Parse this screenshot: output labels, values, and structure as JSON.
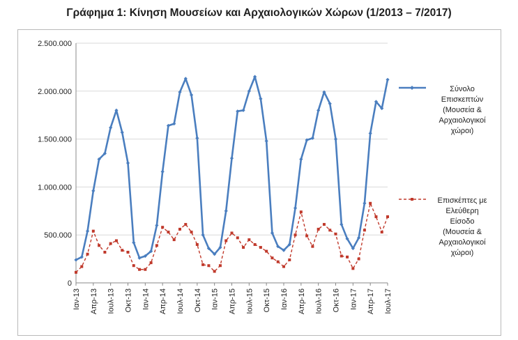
{
  "title": "Γράφημα 1: Κίνηση Μουσείων και Αρχαιολογικών Χώρων (1/2013 – 7/2017)",
  "colors": {
    "total": "#4a7ebf",
    "free": "#c0392b",
    "grid": "#d9d9d9",
    "axis": "#888888"
  },
  "chart_data": {
    "type": "line",
    "title": "Γράφημα 1: Κίνηση Μουσείων και Αρχαιολογικών Χώρων (1/2013 – 7/2017)",
    "xlabel": "",
    "ylabel": "",
    "ylim": [
      0,
      2500000
    ],
    "yticks": [
      "0",
      "500.000",
      "1.000.000",
      "1.500.000",
      "2.000.000",
      "2.500.000"
    ],
    "xtick_labels": [
      "Ιαν-13",
      "Απρ-13",
      "Ιουλ-13",
      "Οκτ-13",
      "Ιαν-14",
      "Απρ-14",
      "Ιουλ-14",
      "Οκτ-14",
      "Ιαν-15",
      "Απρ-15",
      "Ιουλ-15",
      "Οκτ-15",
      "Ιαν-16",
      "Απρ-16",
      "Ιουλ-16",
      "Οκτ-16",
      "Ιαν-17",
      "Απρ-17",
      "Ιουλ-17"
    ],
    "grid": "horizontal",
    "legend_position": "right",
    "series": [
      {
        "name": "Σύνολο Επισκεπτών (Μουσεία & Αρχαιολογικοί χώροι)",
        "style": "solid-diamond",
        "values": [
          240000,
          270000,
          540000,
          960000,
          1290000,
          1350000,
          1620000,
          1800000,
          1570000,
          1250000,
          420000,
          260000,
          280000,
          330000,
          600000,
          1160000,
          1640000,
          1660000,
          1990000,
          2130000,
          1960000,
          1510000,
          500000,
          360000,
          300000,
          370000,
          750000,
          1300000,
          1790000,
          1800000,
          2000000,
          2150000,
          1920000,
          1480000,
          520000,
          380000,
          340000,
          400000,
          780000,
          1290000,
          1490000,
          1510000,
          1800000,
          1990000,
          1870000,
          1500000,
          610000,
          460000,
          360000,
          470000,
          830000,
          1560000,
          1890000,
          1820000,
          2120000
        ]
      },
      {
        "name": "Επισκέπτες με Ελεύθερη Είσοδο (Μουσεία & Αρχαιολογικοί χώροι)",
        "style": "dashed-square",
        "values": [
          110000,
          170000,
          300000,
          540000,
          390000,
          320000,
          410000,
          440000,
          340000,
          320000,
          180000,
          140000,
          140000,
          210000,
          390000,
          580000,
          530000,
          450000,
          560000,
          610000,
          530000,
          400000,
          190000,
          180000,
          120000,
          180000,
          440000,
          520000,
          470000,
          370000,
          450000,
          400000,
          370000,
          330000,
          260000,
          220000,
          170000,
          240000,
          500000,
          740000,
          490000,
          380000,
          560000,
          610000,
          550000,
          510000,
          280000,
          270000,
          150000,
          250000,
          550000,
          830000,
          690000,
          530000,
          690000
        ]
      }
    ]
  },
  "legend": [
    {
      "lines": [
        "Σύνολο",
        "Επισκεπτών",
        "(Μουσεία &",
        "Αρχαιολογικοί",
        "χώροι)"
      ]
    },
    {
      "lines": [
        "Επισκέπτες με",
        "Ελεύθερη",
        "Είσοδο",
        "(Μουσεία &",
        "Αρχαιολογικοί",
        "χώροι)"
      ]
    }
  ]
}
